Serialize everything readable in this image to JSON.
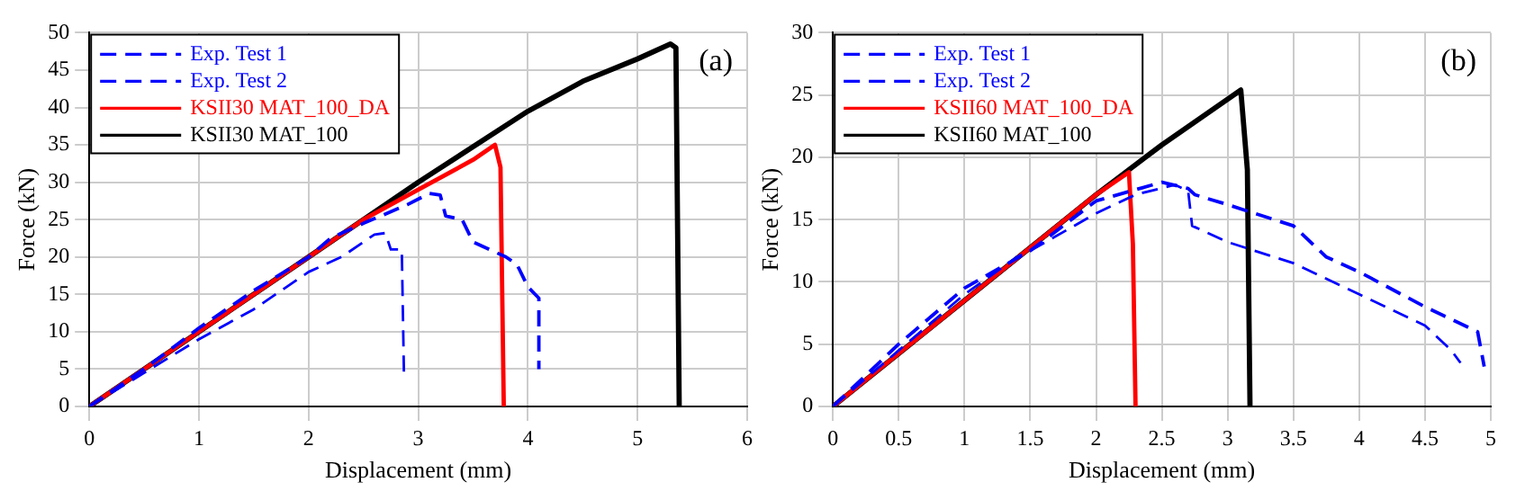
{
  "chart_data": [
    {
      "type": "line",
      "xlabel": "Displacement (mm)",
      "ylabel": "Force (kN)",
      "annotations": [
        "(a)"
      ],
      "xlim": [
        0,
        6
      ],
      "ylim": [
        0,
        50
      ],
      "xticks": [
        0,
        1,
        2,
        3,
        4,
        5,
        6
      ],
      "yticks": [
        0,
        5,
        10,
        15,
        20,
        25,
        30,
        35,
        40,
        45,
        50
      ],
      "grid": true,
      "legend": "top left",
      "marker": "none",
      "series": [
        {
          "name": "Exp. Test 1",
          "color": "#0000ff",
          "line_style": "dashed",
          "x": [
            0,
            0.5,
            1,
            1.5,
            2,
            2.3,
            2.6,
            2.7,
            2.75,
            2.85,
            2.87
          ],
          "values": [
            0,
            4.5,
            9,
            13,
            18,
            20,
            23,
            23.2,
            21,
            21,
            4
          ]
        },
        {
          "name": "Exp. Test 2",
          "color": "#0000ff",
          "line_style": "dashed",
          "x": [
            0,
            0.5,
            1,
            1.5,
            2,
            2.2,
            2.5,
            2.9,
            3.1,
            3.2,
            3.25,
            3.4,
            3.5,
            3.8,
            3.9,
            4,
            4.1,
            4.1
          ],
          "values": [
            0,
            5,
            10.5,
            15.5,
            20,
            22.5,
            24.5,
            27,
            28.5,
            28.3,
            25.5,
            25,
            22,
            20,
            19,
            16,
            14.5,
            5
          ]
        },
        {
          "name": "KSII30 MAT_100_DA",
          "color": "#ff0000",
          "line_style": "solid",
          "x": [
            0,
            1,
            2,
            2.5,
            3,
            3.5,
            3.7,
            3.75,
            3.78
          ],
          "values": [
            0,
            10,
            20,
            25,
            29,
            33,
            35,
            32,
            0
          ]
        },
        {
          "name": "KSII30 MAT_100",
          "color": "#000000",
          "line_style": "solid",
          "x": [
            0,
            1,
            2,
            3,
            4,
            4.5,
            5,
            5.3,
            5.35,
            5.38
          ],
          "values": [
            0,
            10,
            20,
            30,
            39.5,
            43.5,
            46.5,
            48.5,
            48,
            0
          ]
        }
      ]
    },
    {
      "type": "line",
      "xlabel": "Displacement (mm)",
      "ylabel": "Force (kN)",
      "annotations": [
        "(b)"
      ],
      "xlim": [
        0,
        5
      ],
      "ylim": [
        0,
        30
      ],
      "xticks": [
        0,
        0.5,
        1,
        1.5,
        2,
        2.5,
        3,
        3.5,
        4,
        4.5,
        5
      ],
      "yticks": [
        0,
        5,
        10,
        15,
        20,
        25,
        30
      ],
      "grid": true,
      "legend": "top left",
      "marker": "none",
      "series": [
        {
          "name": "Exp. Test 1",
          "color": "#0000ff",
          "line_style": "dashed",
          "x": [
            0,
            0.5,
            1,
            1.4,
            1.5,
            2,
            2.3,
            2.6,
            2.7,
            2.73,
            3,
            3.5,
            4,
            4.5,
            4.7,
            4.77
          ],
          "values": [
            0,
            4.5,
            9,
            12,
            12.5,
            15.5,
            17,
            17.8,
            17.3,
            14.5,
            13.2,
            11.5,
            9,
            6.5,
            4.5,
            3.5
          ]
        },
        {
          "name": "Exp. Test 2",
          "color": "#0000ff",
          "line_style": "dashed",
          "x": [
            0,
            0.5,
            1,
            1.5,
            2,
            2.5,
            2.7,
            2.75,
            3,
            3.5,
            3.75,
            4,
            4.5,
            4.9,
            4.95
          ],
          "values": [
            0,
            5,
            9.5,
            12.5,
            16.5,
            18,
            17.5,
            17,
            16.2,
            14.5,
            12,
            10.8,
            8,
            6,
            3.2
          ]
        },
        {
          "name": "KSII60 MAT_100_DA",
          "color": "#ff0000",
          "line_style": "solid",
          "x": [
            0,
            1,
            2,
            2.25,
            2.28,
            2.3
          ],
          "values": [
            0,
            8.5,
            17,
            18.8,
            13,
            0
          ]
        },
        {
          "name": "KSII60 MAT_100",
          "color": "#000000",
          "line_style": "solid",
          "x": [
            0,
            1,
            2,
            2.5,
            3.1,
            3.15,
            3.17
          ],
          "values": [
            0,
            8.5,
            17,
            21,
            25.4,
            19,
            0
          ]
        }
      ]
    }
  ]
}
